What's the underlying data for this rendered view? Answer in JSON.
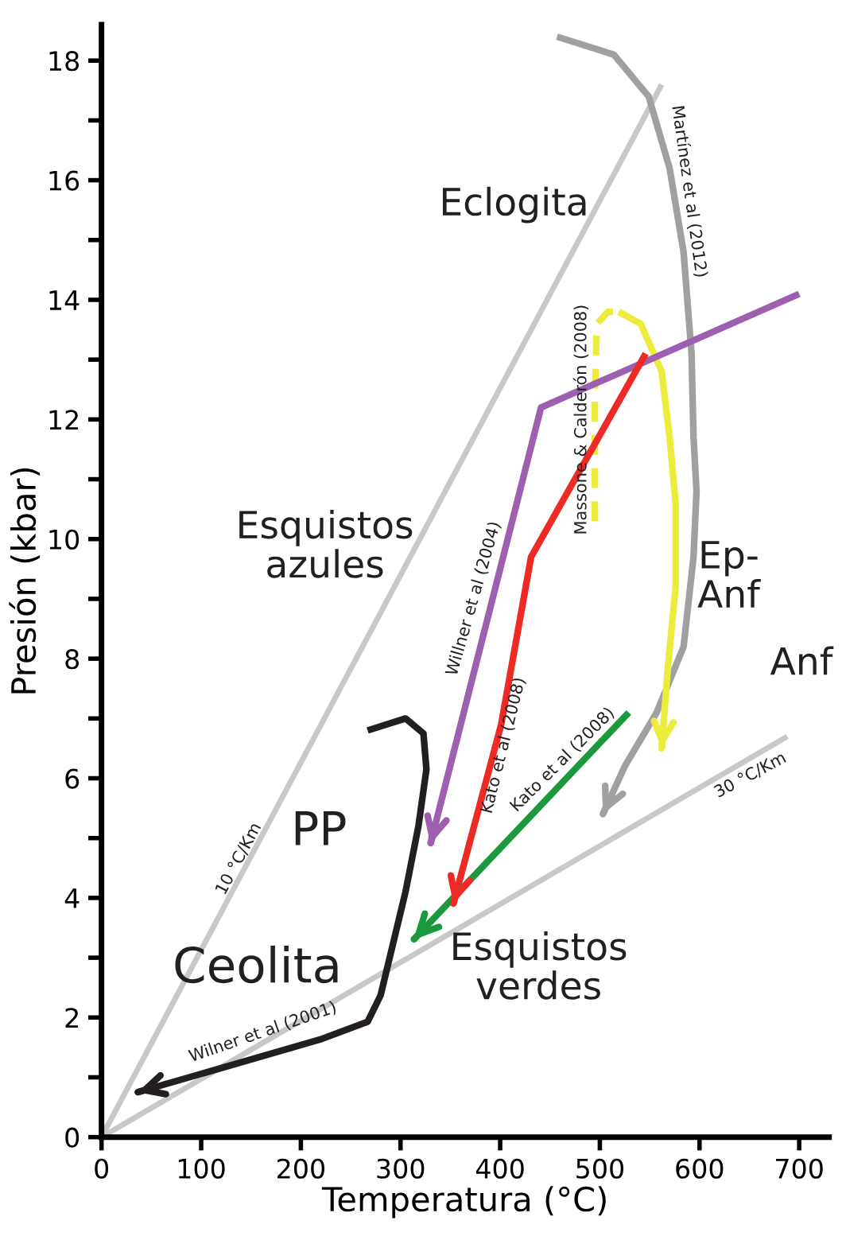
{
  "chart_data": {
    "type": "line",
    "xlabel": "Temperatura (°C)",
    "ylabel": "Presión (kbar)",
    "xlim": [
      0,
      730
    ],
    "ylim": [
      0,
      18.6
    ],
    "xticks": [
      0,
      100,
      200,
      300,
      400,
      500,
      600,
      700
    ],
    "yticks": [
      0,
      {
        "value": 1,
        "label": null
      },
      2,
      {
        "value": 3,
        "label": null
      },
      4,
      {
        "value": 5,
        "label": null
      },
      6,
      {
        "value": 7,
        "label": null
      },
      8,
      {
        "value": 9,
        "label": null
      },
      10,
      {
        "value": 11,
        "label": null
      },
      12,
      {
        "value": 13,
        "label": null
      },
      14,
      {
        "value": 15,
        "label": null
      },
      16,
      {
        "value": 17,
        "label": null
      },
      18
    ],
    "grid": false,
    "legend": false,
    "series": [
      {
        "color": "#c8c8c8",
        "x": [
          0,
          562
        ],
        "values": [
          0,
          17.6
        ]
      },
      {
        "color": "#c8c8c8",
        "x": [
          0,
          688
        ],
        "values": [
          0,
          6.7
        ]
      },
      {
        "color": "#a0a0a0",
        "line_style": "solid",
        "x": [
          457,
          514,
          549,
          570,
          584,
          592,
          594,
          597,
          594,
          584,
          557,
          525,
          503
        ],
        "values": [
          18.4,
          18.1,
          17.4,
          16.2,
          14.8,
          13.1,
          11.7,
          10.8,
          9.7,
          8.2,
          7.1,
          6.2,
          5.4
        ]
      },
      {
        "color": "#ecec3c",
        "line_style": "dashed",
        "x": [
          495,
          495,
          497,
          508,
          519
        ],
        "values": [
          10.3,
          12.4,
          13.6,
          13.8,
          13.8
        ]
      },
      {
        "color": "#ecec3c",
        "line_style": "solid",
        "x": [
          519,
          541,
          562,
          570,
          576,
          576,
          568,
          562
        ],
        "values": [
          13.8,
          13.6,
          12.8,
          11.7,
          10.6,
          9.2,
          7.8,
          6.5
        ]
      },
      {
        "color": "#9e5fb0",
        "line_style": "solid",
        "x": [
          700,
          441,
          330
        ],
        "values": [
          14.1,
          12.2,
          4.9
        ]
      },
      {
        "color": "#ee2a24",
        "line_style": "solid",
        "x": [
          546,
          431,
          401,
          353
        ],
        "values": [
          13.1,
          9.7,
          6.9,
          3.9
        ]
      },
      {
        "color": "#1a9a3c",
        "line_style": "solid",
        "x": [
          529,
          313
        ],
        "values": [
          7.1,
          3.3
        ]
      },
      {
        "color": "#231f20",
        "line_style": "solid",
        "x": [
          267,
          305,
          323,
          326,
          318,
          305,
          280,
          267,
          219,
          36
        ],
        "values": [
          6.8,
          7.0,
          6.75,
          6.15,
          5.2,
          4.1,
          2.37,
          1.93,
          1.63,
          0.75
        ]
      }
    ],
    "annotations": [
      "Eclogita",
      "Esquistos\nazules",
      "Ep-\nAnf",
      "Anf",
      "PP",
      "Ceolita",
      "Esquistos\nverdes",
      "10 °C/Km",
      "30 °C/Km",
      "Martínez et al (2012)",
      "Massone & Calderón (2008)",
      "Willner et al (2004)",
      "Kato et al (2008)",
      "Kato et al (2008)",
      "Wilner et al (2001)"
    ]
  }
}
